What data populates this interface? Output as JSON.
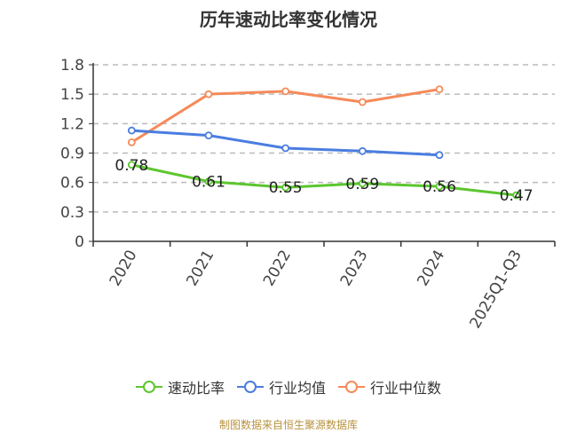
{
  "title": "历年速动比率变化情况",
  "source": "制图数据来自恒生聚源数据库",
  "legend": [
    {
      "label": "速动比率",
      "color": "#5cc62f"
    },
    {
      "label": "行业均值",
      "color": "#4a7de0"
    },
    {
      "label": "行业中位数",
      "color": "#f58a5a"
    }
  ],
  "chart_data": {
    "type": "line",
    "title": "历年速动比率变化情况",
    "xlabel": "",
    "ylabel": "",
    "categories": [
      "2020",
      "2021",
      "2022",
      "2023",
      "2024",
      "2025Q1-Q3"
    ],
    "yticks": [
      "0",
      "0.3",
      "0.6",
      "0.9",
      "1.2",
      "1.5",
      "1.8"
    ],
    "ylim": [
      0,
      1.8
    ],
    "grid": true,
    "legend_position": "bottom",
    "series": [
      {
        "name": "速动比率",
        "color": "#5cc62f",
        "values": [
          0.78,
          0.61,
          0.55,
          0.59,
          0.56,
          0.47
        ],
        "labels": [
          "0.78",
          "0.61",
          "0.55",
          "0.59",
          "0.56",
          "0.47"
        ]
      },
      {
        "name": "行业均值",
        "color": "#4a7de0",
        "values": [
          1.13,
          1.08,
          0.95,
          0.92,
          0.88,
          null
        ]
      },
      {
        "name": "行业中位数",
        "color": "#f58a5a",
        "values": [
          1.01,
          1.5,
          1.53,
          1.42,
          1.55,
          null
        ]
      }
    ]
  }
}
